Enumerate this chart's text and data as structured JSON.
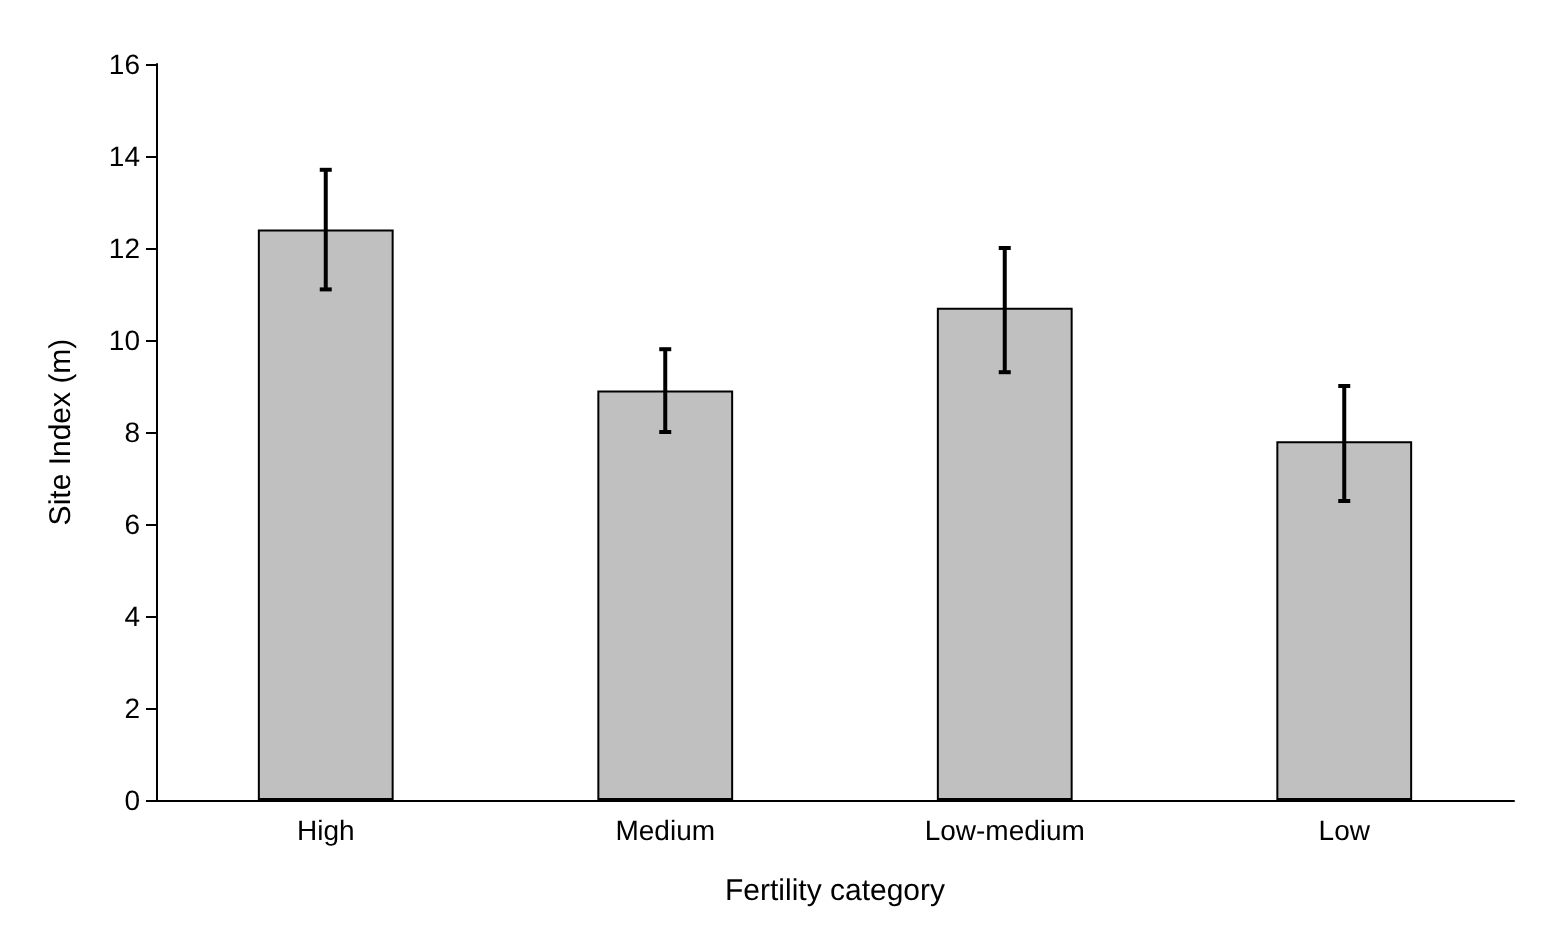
{
  "chart_data": {
    "type": "bar",
    "xlabel": "Fertility category",
    "ylabel": "Site Index (m)",
    "categories": [
      "High",
      "Medium",
      "Low-medium",
      "Low"
    ],
    "values": [
      12.4,
      8.9,
      10.7,
      7.8
    ],
    "errors": [
      [
        11.1,
        13.7
      ],
      [
        8.0,
        9.8
      ],
      [
        9.3,
        12.0
      ],
      [
        6.5,
        9.0
      ]
    ],
    "color": "#c0c0c0",
    "ylim": [
      0,
      16
    ],
    "yticks": [
      0,
      2,
      4,
      6,
      8,
      10,
      12,
      14,
      16
    ],
    "grid": false
  }
}
